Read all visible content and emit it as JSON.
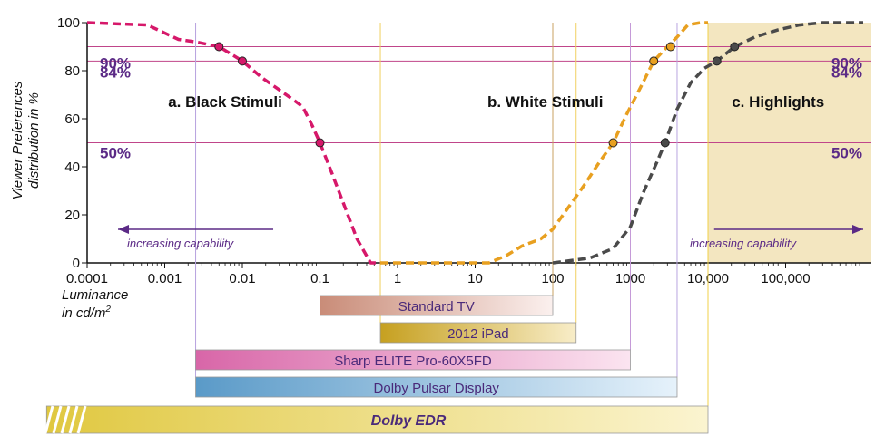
{
  "chart_data": {
    "type": "line",
    "title": "",
    "xlabel_line1": "Luminance",
    "xlabel_line2": "in cd/m",
    "xlabel_sup": "2",
    "ylabel_line1": "Viewer Preferences",
    "ylabel_line2": "distribution in %",
    "xscale": "log",
    "xlim": [
      0.0001,
      1000000
    ],
    "ylim": [
      0,
      100
    ],
    "x_ticks": [
      0.0001,
      0.001,
      0.01,
      0.1,
      1,
      10,
      100,
      1000,
      10000,
      100000
    ],
    "x_tick_labels": [
      "0.0001",
      "0.001",
      "0.01",
      "0.1",
      "1",
      "10",
      "100",
      "1000",
      "10,000",
      "100,000"
    ],
    "y_ticks": [
      0,
      20,
      40,
      60,
      80,
      100
    ],
    "y_tick_labels": [
      "0",
      "20",
      "40",
      "60",
      "80",
      "100"
    ],
    "reference_lines": [
      {
        "y": 90,
        "label": "90%"
      },
      {
        "y": 84,
        "label": "84%"
      },
      {
        "y": 50,
        "label": "50%"
      }
    ],
    "regions": [
      {
        "label": "a. Black Stimuli",
        "x": 0.006
      },
      {
        "label": "b. White Stimuli",
        "x": 80
      },
      {
        "label": "c. Highlights",
        "x": 80000
      }
    ],
    "highlight_shade": {
      "from": 10000,
      "to": 1000000,
      "color": "#f3e6c0"
    },
    "arrows": [
      {
        "label": "increasing capability",
        "direction": "left",
        "from": 0.025,
        "to": 0.00025
      },
      {
        "label": "increasing capability",
        "direction": "right",
        "from": 12000,
        "to": 1000000
      }
    ],
    "series": [
      {
        "color": "#d6186a",
        "x": [
          0.0001,
          0.0006,
          0.0015,
          0.0025,
          0.0035,
          0.005,
          0.008,
          0.01,
          0.018,
          0.03,
          0.045,
          0.06,
          0.08,
          0.1,
          0.14,
          0.2,
          0.3,
          0.45,
          0.6
        ],
        "y": [
          100,
          99,
          93,
          92,
          91,
          90,
          86,
          84,
          77,
          72,
          68,
          65,
          57,
          50,
          38,
          25,
          10,
          0,
          0
        ],
        "markers": [
          [
            0.005,
            90
          ],
          [
            0.01,
            84
          ],
          [
            0.1,
            50
          ]
        ]
      },
      {
        "color": "#e8a020",
        "x": [
          0.6,
          2,
          15,
          25,
          40,
          70,
          100,
          150,
          250,
          400,
          600,
          900,
          1400,
          2000,
          3000,
          4000,
          5500,
          8000,
          10000
        ],
        "y": [
          0,
          0,
          0,
          3,
          7,
          10,
          14,
          22,
          32,
          42,
          50,
          62,
          74,
          84,
          90,
          94,
          99,
          100,
          100
        ],
        "markers": [
          [
            600,
            50
          ],
          [
            2000,
            84
          ],
          [
            3300,
            90
          ]
        ]
      },
      {
        "color": "#4a4a4a",
        "x": [
          100,
          300,
          600,
          1000,
          1500,
          2200,
          2800,
          4000,
          6000,
          9000,
          13000,
          22000,
          40000,
          80000,
          150000,
          300000,
          600000,
          1000000
        ],
        "y": [
          0,
          2,
          6,
          15,
          30,
          42,
          50,
          64,
          75,
          81,
          84,
          90,
          94,
          97,
          99,
          100,
          100,
          100
        ],
        "markers": [
          [
            2800,
            50
          ],
          [
            13000,
            84
          ],
          [
            22000,
            90
          ]
        ]
      }
    ],
    "range_bars": [
      {
        "label": "Standard TV",
        "from": 0.1,
        "to": 100,
        "color_from": "#c98c78",
        "color_to": "#fbf0ee",
        "line": "#c8a060"
      },
      {
        "label": "2012 iPad",
        "from": 0.6,
        "to": 200,
        "color_from": "#c6a020",
        "color_to": "#f8edc8",
        "line": "#f0d060"
      },
      {
        "label": "Sharp ELITE Pro-60X5FD",
        "from": 0.0025,
        "to": 1000,
        "color_from": "#d866a8",
        "color_to": "#fbe4f0",
        "line": "#c59ad8"
      },
      {
        "label": "Dolby Pulsar Display",
        "from": 0.0025,
        "to": 4000,
        "color_from": "#5a9ac8",
        "color_to": "#e6f2fb",
        "line": "#b9a6e0"
      },
      {
        "label": "Dolby EDR",
        "from": 3e-05,
        "to": 10000,
        "color_from": "#e0c840",
        "color_to": "#fbf4d0",
        "line": "#f0d048"
      }
    ]
  }
}
